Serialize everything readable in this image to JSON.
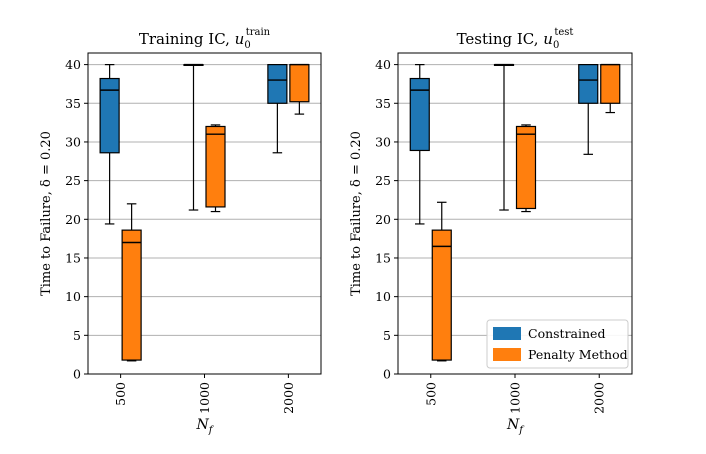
{
  "chart_data": [
    {
      "type": "box",
      "title": "Training IC, ",
      "title_math": "u",
      "title_sub": "0",
      "title_sup": "train",
      "xlabel": "N",
      "xlabel_sub": "f",
      "ylabel": "Time to Failure, δ = 0.20",
      "ylim": [
        0,
        41.5
      ],
      "yticks": [
        0,
        5,
        10,
        15,
        20,
        25,
        30,
        35,
        40
      ],
      "categories": [
        "500",
        "1000",
        "2000"
      ],
      "grid": true,
      "legend": null,
      "series": [
        {
          "name": "Constrained",
          "color": "#1f77b4",
          "boxes": [
            {
              "min": 19.4,
              "q1": 28.6,
              "median": 36.7,
              "q3": 38.2,
              "max": 40.0
            },
            {
              "min": 21.2,
              "q1": 40.0,
              "median": 40.0,
              "q3": 40.0,
              "max": 40.0
            },
            {
              "min": 28.6,
              "q1": 35.0,
              "median": 38.0,
              "q3": 40.0,
              "max": 40.0
            }
          ]
        },
        {
          "name": "Penalty Method",
          "color": "#ff7f0e",
          "boxes": [
            {
              "min": 1.7,
              "q1": 1.8,
              "median": 17.0,
              "q3": 18.6,
              "max": 22.0
            },
            {
              "min": 21.0,
              "q1": 21.6,
              "median": 31.0,
              "q3": 32.0,
              "max": 32.2
            },
            {
              "min": 33.6,
              "q1": 35.2,
              "median": 40.0,
              "q3": 40.0,
              "max": 40.0
            }
          ]
        }
      ]
    },
    {
      "type": "box",
      "title": "Testing IC, ",
      "title_math": "u",
      "title_sub": "0",
      "title_sup": "test",
      "xlabel": "N",
      "xlabel_sub": "f",
      "ylabel": "Time to Failure, δ = 0.20",
      "ylim": [
        0,
        41.5
      ],
      "yticks": [
        0,
        5,
        10,
        15,
        20,
        25,
        30,
        35,
        40
      ],
      "categories": [
        "500",
        "1000",
        "2000"
      ],
      "grid": true,
      "legend": {
        "location": "lower-right",
        "entries": [
          "Constrained",
          "Penalty Method"
        ]
      },
      "series": [
        {
          "name": "Constrained",
          "color": "#1f77b4",
          "boxes": [
            {
              "min": 19.4,
              "q1": 28.9,
              "median": 36.7,
              "q3": 38.2,
              "max": 40.0
            },
            {
              "min": 21.2,
              "q1": 40.0,
              "median": 40.0,
              "q3": 40.0,
              "max": 40.0
            },
            {
              "min": 28.4,
              "q1": 35.0,
              "median": 38.0,
              "q3": 40.0,
              "max": 40.0
            }
          ]
        },
        {
          "name": "Penalty Method",
          "color": "#ff7f0e",
          "boxes": [
            {
              "min": 1.7,
              "q1": 1.8,
              "median": 16.5,
              "q3": 18.6,
              "max": 22.2
            },
            {
              "min": 21.0,
              "q1": 21.4,
              "median": 31.0,
              "q3": 32.0,
              "max": 32.2
            },
            {
              "min": 33.8,
              "q1": 35.0,
              "median": 40.0,
              "q3": 40.0,
              "max": 40.0
            }
          ]
        }
      ]
    }
  ]
}
